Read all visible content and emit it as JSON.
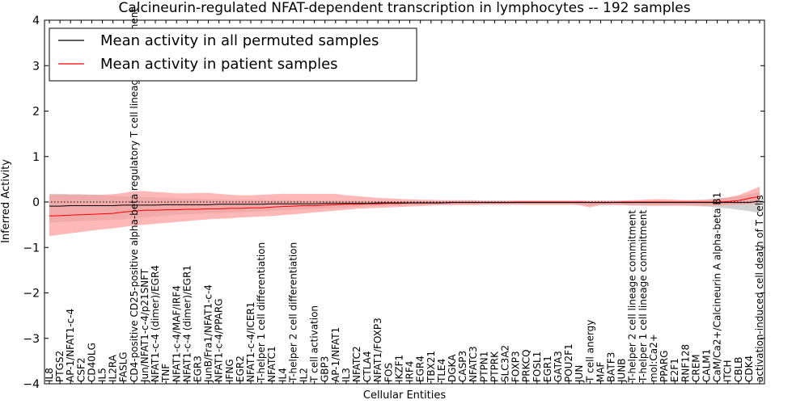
{
  "chart_data": {
    "type": "line",
    "title": "Calcineurin-regulated NFAT-dependent transcription in lymphocytes -- 192 samples",
    "xlabel": "Cellular Entities",
    "ylabel": "Inferred Activity",
    "ylim": [
      -4,
      4
    ],
    "yticks": [
      -4,
      -3,
      -2,
      -1,
      0,
      1,
      2,
      3,
      4
    ],
    "ytick_labels": [
      "−4",
      "−3",
      "−2",
      "−1",
      "0",
      "1",
      "2",
      "3",
      "4"
    ],
    "legend_position": "top-left",
    "colors": {
      "permuted": "#000000",
      "patient": "#ff0000",
      "permuted_band": "#bdbdbd",
      "patient_band": "#ff9a9a"
    },
    "categories": [
      "IL8",
      "PTGS2",
      "AP-1/NFAT1-c-4",
      "CSF2",
      "CD40LG",
      "IL5",
      "IL2RA",
      "FASLG",
      "CD4-positive CD25-positive alpha-beta regulatory T cell lineage commitment",
      "Jun/NFAT1-c-4/p21SNFT",
      "NFAT1-c-4 (dimer)/EGR4",
      "TNF",
      "NFAT1-c-4/MAF/IRF4",
      "NFAT1-c-4 (dimer)/EGR1",
      "EGR3",
      "JunB/Fra1/NFAT1-c-4",
      "NFAT1-c-4/PPARG",
      "IFNG",
      "EGR2",
      "NFAT1-c-4/ICER1",
      "T-helper 1 cell differentiation",
      "NFATC1",
      "IL4",
      "T-helper 2 cell differentiation",
      "IL2",
      "T cell activation",
      "GBP3",
      "AP-1/NFAT1",
      "IL3",
      "NFATC2",
      "CTLA4",
      "NFAT1/FOXP3",
      "FOS",
      "IKZF1",
      "IRF4",
      "EGR4",
      "TBX21",
      "TLE4",
      "DGKA",
      "CASP3",
      "NFATC3",
      "PTPN1",
      "PTPRK",
      "SLC3A2",
      "FOXP3",
      "PRKCQ",
      "FOSL1",
      "EGR1",
      "GATA3",
      "POU2F1",
      "JUN",
      "T cell anergy",
      "MAF",
      "BATF3",
      "JUNB",
      "T-helper 2 cell lineage commitment",
      "T-helper 1 cell lineage commitment",
      "mol:Ca2+",
      "PPARG",
      "E2F1",
      "RNF128",
      "CREM",
      "CALM1",
      "CaM/Ca2+/Calcineurin A alpha-beta B1",
      "ITCH",
      "CBLB",
      "CDK4",
      "activation-induced cell death of T cells"
    ],
    "series": [
      {
        "name": "Mean activity in all permuted samples",
        "color": "#000000",
        "values": [
          -0.09,
          -0.09,
          -0.08,
          -0.08,
          -0.08,
          -0.08,
          -0.08,
          -0.07,
          -0.07,
          -0.07,
          -0.07,
          -0.06,
          -0.06,
          -0.06,
          -0.06,
          -0.06,
          -0.05,
          -0.05,
          -0.05,
          -0.05,
          -0.05,
          -0.04,
          -0.04,
          -0.04,
          -0.04,
          -0.04,
          -0.03,
          -0.03,
          -0.03,
          -0.03,
          -0.03,
          -0.02,
          -0.02,
          -0.02,
          -0.02,
          -0.02,
          -0.02,
          -0.02,
          -0.01,
          -0.01,
          -0.01,
          -0.01,
          -0.01,
          -0.01,
          -0.01,
          -0.01,
          -0.01,
          -0.01,
          -0.01,
          -0.01,
          -0.01,
          -0.01,
          -0.01,
          -0.01,
          -0.01,
          -0.01,
          -0.01,
          -0.01,
          -0.01,
          -0.01,
          -0.01,
          -0.01,
          -0.01,
          -0.01,
          -0.01,
          -0.01,
          -0.01,
          0.02
        ],
        "lower": [
          -0.45,
          -0.44,
          -0.43,
          -0.42,
          -0.41,
          -0.4,
          -0.39,
          -0.38,
          -0.36,
          -0.34,
          -0.32,
          -0.3,
          -0.28,
          -0.27,
          -0.26,
          -0.25,
          -0.24,
          -0.23,
          -0.22,
          -0.21,
          -0.2,
          -0.19,
          -0.18,
          -0.17,
          -0.16,
          -0.15,
          -0.14,
          -0.13,
          -0.12,
          -0.11,
          -0.1,
          -0.09,
          -0.08,
          -0.08,
          -0.07,
          -0.07,
          -0.06,
          -0.06,
          -0.05,
          -0.05,
          -0.05,
          -0.05,
          -0.05,
          -0.05,
          -0.05,
          -0.05,
          -0.05,
          -0.05,
          -0.05,
          -0.05,
          -0.06,
          -0.08,
          -0.06,
          -0.06,
          -0.06,
          -0.07,
          -0.08,
          -0.08,
          -0.08,
          -0.08,
          -0.08,
          -0.09,
          -0.1,
          -0.12,
          -0.14,
          -0.17,
          -0.2,
          -0.24
        ],
        "upper": [
          0.18,
          0.18,
          0.17,
          0.17,
          0.16,
          0.15,
          0.14,
          0.13,
          0.12,
          0.11,
          0.1,
          0.09,
          0.08,
          0.07,
          0.07,
          0.06,
          0.06,
          0.05,
          0.05,
          0.05,
          0.04,
          0.04,
          0.04,
          0.04,
          0.03,
          0.03,
          0.03,
          0.03,
          0.03,
          0.03,
          0.02,
          0.02,
          0.02,
          0.02,
          0.02,
          0.02,
          0.02,
          0.02,
          0.02,
          0.02,
          0.02,
          0.02,
          0.02,
          0.02,
          0.02,
          0.02,
          0.02,
          0.02,
          0.02,
          0.02,
          0.02,
          0.02,
          0.02,
          0.02,
          0.02,
          0.02,
          0.02,
          0.02,
          0.02,
          0.03,
          0.04,
          0.05,
          0.06,
          0.08,
          0.1,
          0.13,
          0.16,
          0.22
        ]
      },
      {
        "name": "Mean activity in patient samples",
        "color": "#ff0000",
        "values": [
          -0.31,
          -0.3,
          -0.29,
          -0.28,
          -0.27,
          -0.26,
          -0.25,
          -0.22,
          -0.2,
          -0.18,
          -0.18,
          -0.17,
          -0.17,
          -0.16,
          -0.16,
          -0.15,
          -0.15,
          -0.14,
          -0.14,
          -0.13,
          -0.13,
          -0.11,
          -0.1,
          -0.09,
          -0.08,
          -0.08,
          -0.07,
          -0.06,
          -0.05,
          -0.05,
          -0.04,
          -0.04,
          -0.03,
          -0.03,
          -0.02,
          -0.02,
          -0.02,
          -0.02,
          -0.01,
          -0.01,
          -0.01,
          -0.01,
          -0.01,
          -0.01,
          0.0,
          0.0,
          0.0,
          0.0,
          0.0,
          0.0,
          0.0,
          -0.01,
          -0.01,
          -0.01,
          0.0,
          0.0,
          0.0,
          0.0,
          0.0,
          0.0,
          0.0,
          0.0,
          0.0,
          0.0,
          0.01,
          0.03,
          0.08,
          0.12
        ],
        "lower": [
          -0.75,
          -0.72,
          -0.69,
          -0.66,
          -0.63,
          -0.6,
          -0.58,
          -0.55,
          -0.52,
          -0.5,
          -0.48,
          -0.46,
          -0.44,
          -0.42,
          -0.4,
          -0.38,
          -0.37,
          -0.36,
          -0.34,
          -0.33,
          -0.32,
          -0.31,
          -0.29,
          -0.27,
          -0.25,
          -0.23,
          -0.21,
          -0.19,
          -0.17,
          -0.15,
          -0.14,
          -0.13,
          -0.12,
          -0.11,
          -0.1,
          -0.09,
          -0.08,
          -0.07,
          -0.07,
          -0.07,
          -0.07,
          -0.06,
          -0.06,
          -0.06,
          -0.06,
          -0.06,
          -0.06,
          -0.06,
          -0.06,
          -0.06,
          -0.07,
          -0.12,
          -0.07,
          -0.07,
          -0.07,
          -0.08,
          -0.08,
          -0.08,
          -0.08,
          -0.08,
          -0.08,
          -0.08,
          -0.08,
          -0.08,
          -0.07,
          -0.06,
          -0.05,
          -0.02
        ],
        "upper": [
          0.16,
          0.16,
          0.16,
          0.16,
          0.16,
          0.16,
          0.17,
          0.2,
          0.24,
          0.24,
          0.22,
          0.21,
          0.19,
          0.19,
          0.2,
          0.2,
          0.18,
          0.16,
          0.15,
          0.15,
          0.16,
          0.17,
          0.18,
          0.18,
          0.18,
          0.18,
          0.18,
          0.18,
          0.15,
          0.13,
          0.11,
          0.09,
          0.08,
          0.07,
          0.06,
          0.05,
          0.05,
          0.04,
          0.04,
          0.04,
          0.04,
          0.03,
          0.03,
          0.03,
          0.03,
          0.03,
          0.03,
          0.03,
          0.03,
          0.03,
          0.03,
          0.03,
          0.03,
          0.03,
          0.03,
          0.04,
          0.05,
          0.06,
          0.06,
          0.05,
          0.04,
          0.03,
          0.04,
          0.07,
          0.1,
          0.15,
          0.24,
          0.34
        ]
      }
    ]
  }
}
